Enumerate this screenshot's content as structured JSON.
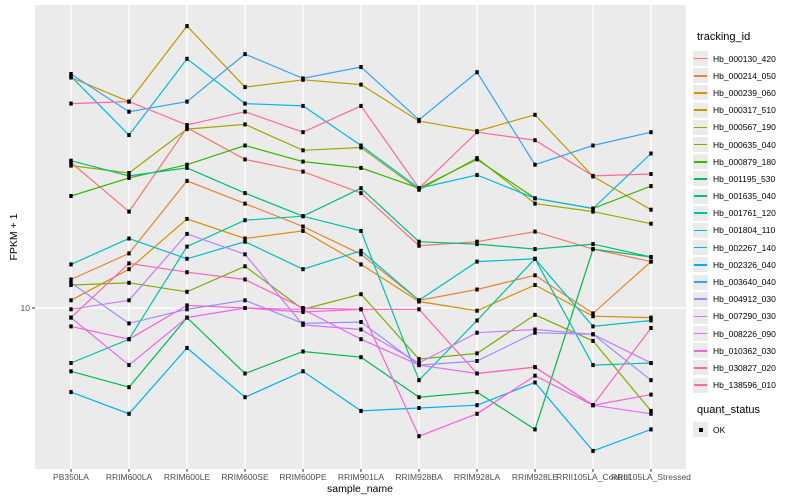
{
  "figure": {
    "background": "#FFFFFF",
    "panel_background": "#EBEBEB",
    "gridline_color": "#FFFFFF",
    "axis_text_color": "#4D4D4D",
    "tick_color": "#333333",
    "marker_color": "#000000"
  },
  "chart_data": {
    "type": "line",
    "title": "",
    "x_axis": {
      "label": "sample_name",
      "categories": [
        "PB350LA",
        "RRIM600LA",
        "RRIM600LE",
        "RRIM600SE",
        "RRIM600PE",
        "RRIM901LA",
        "RRIM928BA",
        "RRIM928LA",
        "RRIM928LE",
        "RRII105LA_Control",
        "RRII105LA_Stressed"
      ]
    },
    "y_axis": {
      "label": "FPKM + 1",
      "scale": "log10",
      "tick_values": [
        10
      ],
      "tick_labels": [
        "10"
      ],
      "range_approx": [
        3,
        98
      ],
      "grid": "on"
    },
    "legend": {
      "title": "tracking_id",
      "position": "right"
    },
    "quant_legend": {
      "title": "quant_status",
      "items": [
        {
          "label": "OK",
          "marker": "black-square"
        }
      ]
    },
    "series": [
      {
        "name": "Hb_000130_420",
        "color": "#F8766D",
        "values": [
          30.0,
          20.7,
          39.0,
          30.7,
          28.0,
          23.8,
          16.0,
          16.5,
          17.8,
          15.6,
          14.2
        ]
      },
      {
        "name": "Hb_000214_050",
        "color": "#EA8331",
        "values": [
          12.4,
          15.1,
          26.1,
          22.0,
          18.5,
          15.0,
          10.6,
          11.5,
          12.8,
          9.6,
          14.2
        ]
      },
      {
        "name": "Hb_000239_060",
        "color": "#D89000",
        "values": [
          10.6,
          13.4,
          19.6,
          16.9,
          17.9,
          13.9,
          10.5,
          9.8,
          11.9,
          9.4,
          9.3
        ]
      },
      {
        "name": "Hb_000317_510",
        "color": "#C09B00",
        "values": [
          57.0,
          47.5,
          84.0,
          53.0,
          56.0,
          54.0,
          41.0,
          38.0,
          43.0,
          27.0,
          21.0
        ]
      },
      {
        "name": "Hb_000567_190",
        "color": "#A3A500",
        "values": [
          29.3,
          27.7,
          38.6,
          40.0,
          32.9,
          33.6,
          24.4,
          31.0,
          22.0,
          20.7,
          18.9
        ]
      },
      {
        "name": "Hb_000635_040",
        "color": "#7CAE00",
        "values": [
          11.9,
          12.1,
          11.3,
          13.7,
          9.9,
          11.1,
          6.8,
          7.1,
          9.5,
          7.8,
          4.6
        ]
      },
      {
        "name": "Hb_000879_180",
        "color": "#39B600",
        "values": [
          23.3,
          26.7,
          29.5,
          34.1,
          30.2,
          28.8,
          24.7,
          30.7,
          22.9,
          21.2,
          25.1
        ]
      },
      {
        "name": "Hb_001195_530",
        "color": "#00BB4E",
        "values": [
          6.2,
          5.5,
          9.3,
          6.1,
          7.2,
          6.9,
          5.1,
          5.3,
          4.0,
          15.6,
          14.7
        ]
      },
      {
        "name": "Hb_001635_040",
        "color": "#00BF7D",
        "values": [
          30.4,
          27.1,
          28.8,
          23.8,
          20.0,
          24.7,
          16.5,
          16.2,
          15.6,
          16.2,
          14.7
        ]
      },
      {
        "name": "Hb_001761_120",
        "color": "#00C1A3",
        "values": [
          6.6,
          7.9,
          15.9,
          19.4,
          20.0,
          17.9,
          5.8,
          9.1,
          14.5,
          6.5,
          6.6
        ]
      },
      {
        "name": "Hb_001804_110",
        "color": "#00BFC4",
        "values": [
          13.9,
          16.9,
          14.5,
          16.5,
          13.4,
          15.4,
          10.6,
          14.2,
          14.5,
          8.7,
          9.1
        ]
      },
      {
        "name": "Hb_002267_140",
        "color": "#00BAE0",
        "values": [
          57.5,
          36.9,
          65.6,
          46.8,
          46.0,
          34.1,
          24.7,
          27.3,
          22.9,
          21.2,
          32.1
        ]
      },
      {
        "name": "Hb_002326_040",
        "color": "#00B0F6",
        "values": [
          5.3,
          4.5,
          7.4,
          5.1,
          6.2,
          4.6,
          4.7,
          4.8,
          5.7,
          3.4,
          4.0
        ]
      },
      {
        "name": "Hb_003640_040",
        "color": "#35A2FF",
        "values": [
          58.5,
          44.0,
          47.5,
          68.0,
          56.6,
          61.7,
          41.4,
          59.3,
          29.5,
          34.1,
          37.7
        ]
      },
      {
        "name": "Hb_004912_030",
        "color": "#9590FF",
        "values": [
          12.1,
          8.9,
          9.9,
          10.6,
          8.9,
          9.0,
          6.5,
          6.7,
          8.3,
          8.2,
          5.8
        ]
      },
      {
        "name": "Hb_007290_030",
        "color": "#C77CFF",
        "values": [
          9.9,
          10.6,
          17.5,
          15.0,
          8.8,
          8.5,
          6.6,
          8.3,
          8.5,
          8.2,
          6.6
        ]
      },
      {
        "name": "Hb_008226_090",
        "color": "#E76BF3",
        "values": [
          9.3,
          6.5,
          9.3,
          10.0,
          9.9,
          7.9,
          6.5,
          6.1,
          6.4,
          4.8,
          4.5
        ]
      },
      {
        "name": "Hb_010362_030",
        "color": "#FA62DB",
        "values": [
          8.7,
          7.9,
          10.2,
          10.0,
          9.7,
          9.9,
          3.8,
          4.5,
          6.0,
          4.8,
          5.2
        ]
      },
      {
        "name": "Hb_030827_020",
        "color": "#FF62BC",
        "values": [
          9.3,
          14.0,
          13.1,
          12.4,
          10.0,
          9.9,
          9.9,
          6.1,
          6.4,
          4.8,
          8.6
        ]
      },
      {
        "name": "Hb_138596_010",
        "color": "#FF6A98",
        "values": [
          46.8,
          47.5,
          39.8,
          44.0,
          37.7,
          46.0,
          24.7,
          37.7,
          35.5,
          27.1,
          27.5
        ]
      }
    ]
  }
}
